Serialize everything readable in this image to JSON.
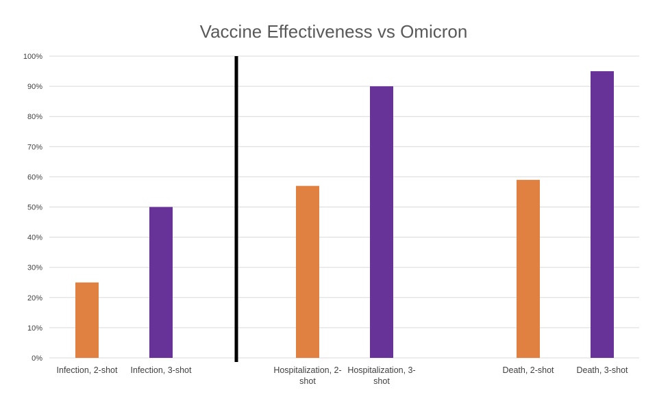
{
  "chart_data": {
    "type": "bar",
    "title": "Vaccine Effectiveness vs Omicron",
    "xlabel": "",
    "ylabel": "",
    "ylim": [
      0,
      100
    ],
    "y_ticks": [
      "0%",
      "10%",
      "20%",
      "30%",
      "40%",
      "50%",
      "60%",
      "70%",
      "80%",
      "90%",
      "100%"
    ],
    "grid": true,
    "legend": "none",
    "categories": [
      [
        "Infection, 2-shot"
      ],
      [
        "Infection, 3-shot"
      ],
      [
        "Hospitalization, 2-",
        "shot"
      ],
      [
        "Hospitalization, 3-",
        "shot"
      ],
      [
        "Death, 2-shot"
      ],
      [
        "Death, 3-shot"
      ]
    ],
    "values": [
      25,
      50,
      57,
      90,
      59,
      95
    ],
    "bar_colors": [
      "#E08142",
      "#673399",
      "#E08142",
      "#673399",
      "#E08142",
      "#673399"
    ],
    "separator_after_category_index": 1,
    "colors": {
      "two_shot": "#E08142",
      "three_shot": "#673399",
      "grid": "#d9d9d9",
      "separator": "#000000"
    }
  }
}
